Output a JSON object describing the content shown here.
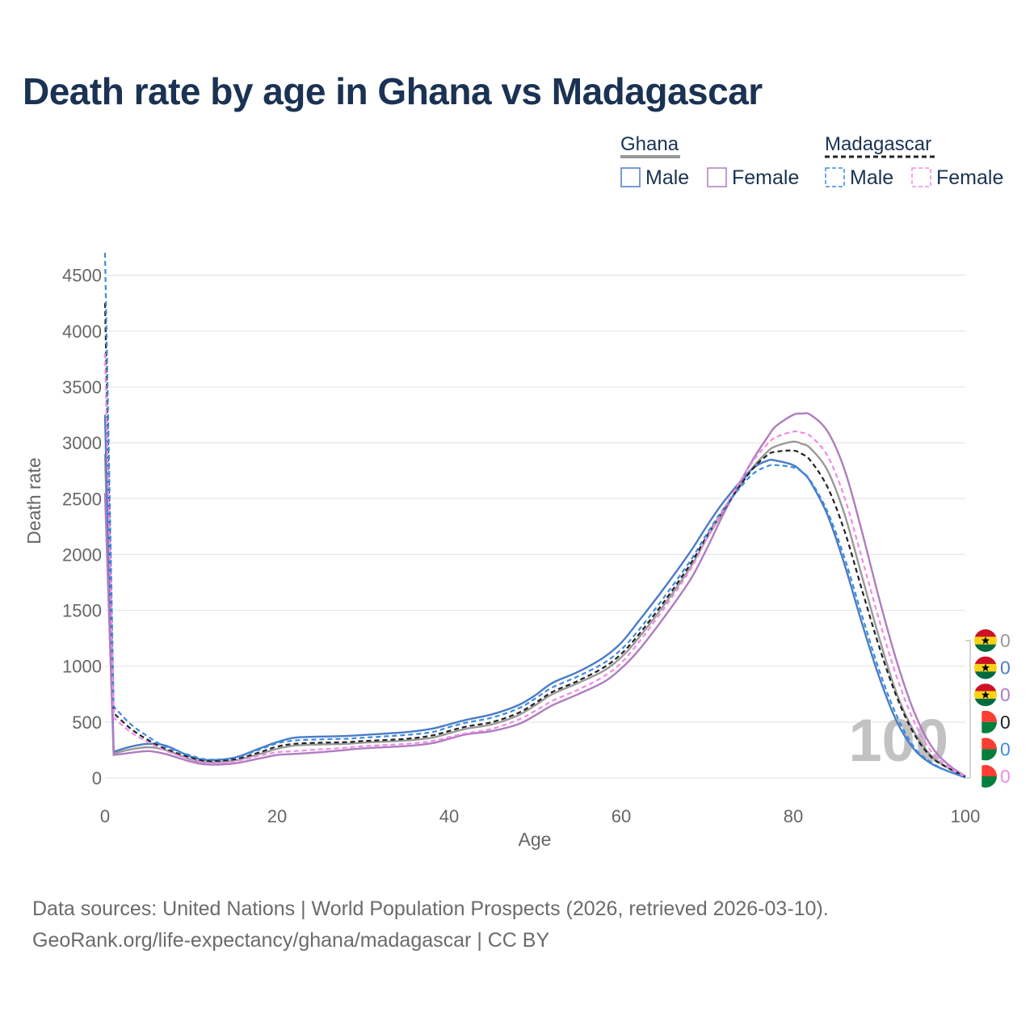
{
  "title": "Death rate by age in Ghana vs Madagascar",
  "source": {
    "line1": "Data sources: United Nations | World Population Prospects (2026, retrieved 2026-03-10).",
    "line2": "GeoRank.org/life-expectancy/ghana/madagascar | CC BY"
  },
  "legend": {
    "groups": [
      {
        "country": "Ghana",
        "line_color": "#999999",
        "dash": false,
        "items": [
          {
            "label": "Male",
            "color": "#4a7cc7"
          },
          {
            "label": "Female",
            "color": "#b07cc0"
          }
        ]
      },
      {
        "country": "Madagascar",
        "line_color": "#222222",
        "dash": true,
        "items": [
          {
            "label": "Male",
            "color": "#3b8be0"
          },
          {
            "label": "Female",
            "color": "#ef8ae6"
          }
        ]
      }
    ]
  },
  "watermark": "100",
  "end_labels": [
    {
      "flag": "ghana",
      "value": "0",
      "color": "#999999"
    },
    {
      "flag": "ghana",
      "value": "0",
      "color": "#4a7cc7"
    },
    {
      "flag": "ghana",
      "value": "0",
      "color": "#b07cc0"
    },
    {
      "flag": "madagascar",
      "value": "0",
      "color": "#222222"
    },
    {
      "flag": "madagascar",
      "value": "0",
      "color": "#3b8be0"
    },
    {
      "flag": "madagascar",
      "value": "0",
      "color": "#ef8ae6"
    }
  ],
  "chart_data": {
    "type": "line",
    "title": "Death rate by age in Ghana vs Madagascar",
    "xlabel": "Age",
    "ylabel": "Death rate",
    "xlim": [
      0,
      100
    ],
    "ylim": [
      0,
      4700
    ],
    "xticks": [
      0,
      20,
      40,
      60,
      80,
      100
    ],
    "yticks": [
      0,
      500,
      1000,
      1500,
      2000,
      2500,
      3000,
      3500,
      4000,
      4500
    ],
    "grid": true,
    "x": [
      0,
      1,
      3,
      5,
      7,
      10,
      12,
      15,
      18,
      20,
      22,
      25,
      28,
      30,
      35,
      38,
      40,
      42,
      45,
      48,
      50,
      52,
      55,
      58,
      60,
      62,
      65,
      68,
      70,
      72,
      75,
      77,
      78,
      80,
      81,
      82,
      84,
      86,
      88,
      90,
      92,
      94,
      96,
      98,
      100
    ],
    "series": [
      {
        "name": "Ghana (total)",
        "color": "#999999",
        "dash": false,
        "values": [
          2900,
          220,
          255,
          275,
          250,
          165,
          140,
          155,
          215,
          260,
          290,
          300,
          305,
          315,
          335,
          360,
          400,
          440,
          480,
          560,
          650,
          750,
          850,
          960,
          1080,
          1250,
          1550,
          1880,
          2150,
          2400,
          2750,
          2920,
          2970,
          3010,
          2990,
          2950,
          2750,
          2350,
          1800,
          1250,
          760,
          420,
          200,
          90,
          10
        ]
      },
      {
        "name": "Ghana Male",
        "color": "#4a7cc7",
        "dash": false,
        "values": [
          3250,
          235,
          280,
          305,
          290,
          190,
          160,
          180,
          265,
          320,
          360,
          370,
          375,
          385,
          410,
          440,
          480,
          520,
          570,
          650,
          740,
          850,
          950,
          1080,
          1210,
          1400,
          1700,
          2020,
          2260,
          2480,
          2750,
          2840,
          2840,
          2800,
          2740,
          2650,
          2350,
          1900,
          1380,
          900,
          510,
          260,
          130,
          60,
          5
        ]
      },
      {
        "name": "Ghana Female",
        "color": "#b07cc0",
        "dash": false,
        "values": [
          2550,
          205,
          225,
          240,
          215,
          145,
          120,
          130,
          175,
          205,
          215,
          230,
          250,
          265,
          285,
          310,
          350,
          390,
          420,
          480,
          560,
          650,
          750,
          860,
          980,
          1140,
          1440,
          1770,
          2060,
          2380,
          2810,
          3050,
          3150,
          3250,
          3260,
          3250,
          3100,
          2750,
          2200,
          1600,
          1050,
          600,
          290,
          120,
          15
        ]
      },
      {
        "name": "Madagascar (total)",
        "color": "#222222",
        "dash": true,
        "values": [
          4250,
          580,
          440,
          340,
          260,
          180,
          150,
          165,
          230,
          280,
          305,
          315,
          320,
          330,
          350,
          380,
          420,
          460,
          500,
          580,
          670,
          770,
          870,
          990,
          1110,
          1280,
          1580,
          1910,
          2170,
          2410,
          2740,
          2890,
          2920,
          2930,
          2900,
          2840,
          2600,
          2200,
          1680,
          1170,
          730,
          400,
          190,
          90,
          10
        ]
      },
      {
        "name": "Madagascar Male",
        "color": "#3b8be0",
        "dash": true,
        "values": [
          4700,
          640,
          480,
          370,
          280,
          200,
          165,
          180,
          255,
          310,
          335,
          345,
          350,
          360,
          385,
          410,
          455,
          495,
          540,
          620,
          710,
          810,
          910,
          1030,
          1150,
          1320,
          1620,
          1940,
          2190,
          2420,
          2700,
          2790,
          2800,
          2780,
          2740,
          2660,
          2380,
          1960,
          1450,
          960,
          560,
          280,
          140,
          60,
          5
        ]
      },
      {
        "name": "Madagascar Female",
        "color": "#ef8ae6",
        "dash": true,
        "values": [
          3800,
          540,
          410,
          320,
          245,
          165,
          135,
          150,
          200,
          230,
          240,
          255,
          270,
          285,
          305,
          330,
          365,
          400,
          440,
          520,
          600,
          690,
          790,
          910,
          1030,
          1210,
          1520,
          1860,
          2150,
          2420,
          2800,
          2990,
          3050,
          3100,
          3090,
          3060,
          2880,
          2500,
          1960,
          1410,
          910,
          510,
          240,
          100,
          12
        ]
      }
    ]
  }
}
